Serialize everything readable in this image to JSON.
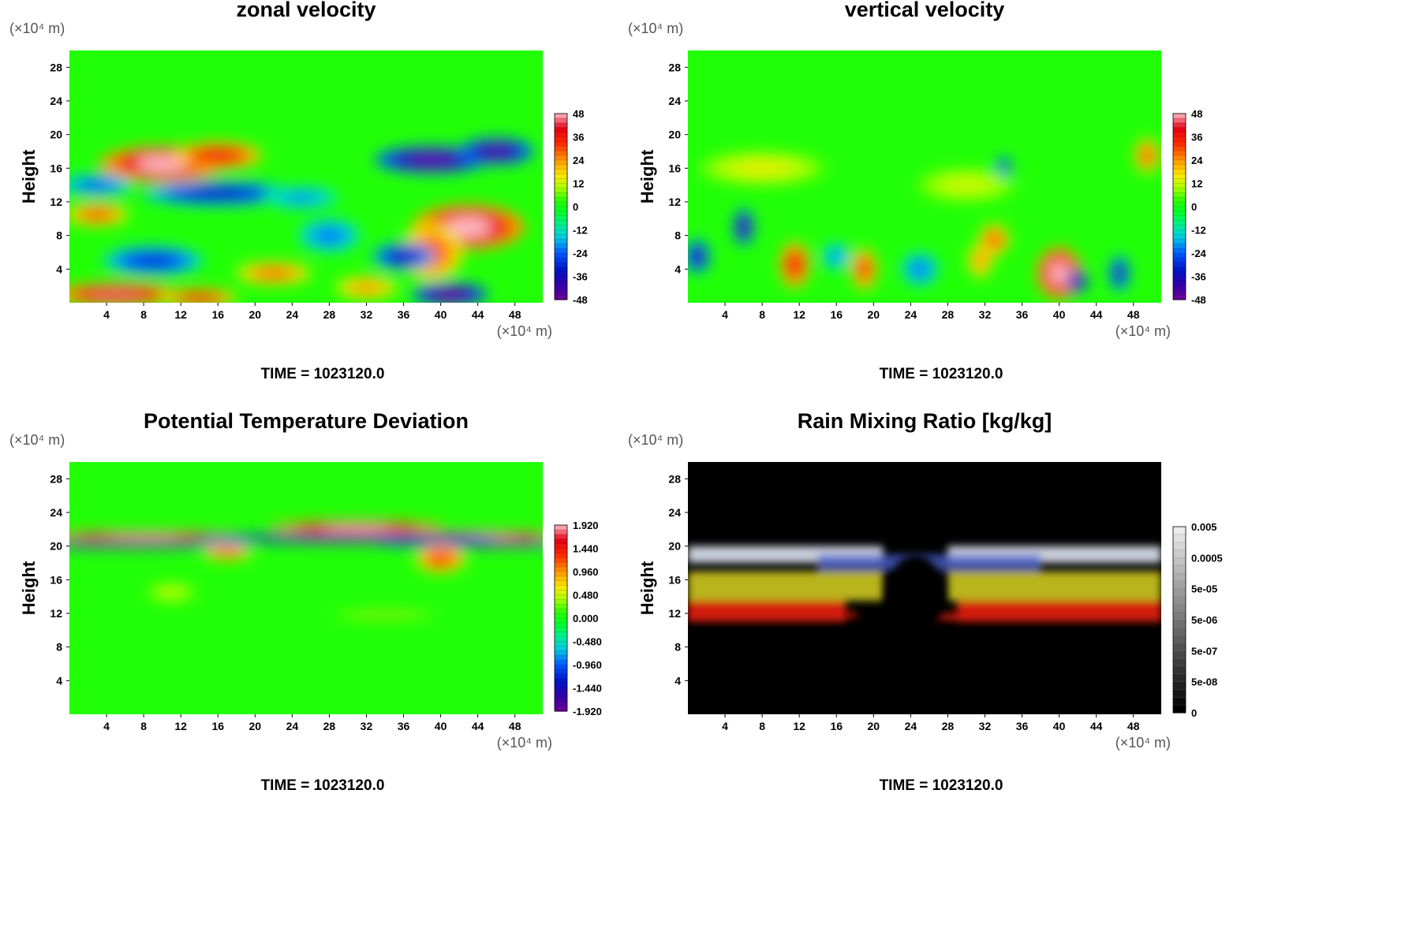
{
  "panels": [
    {
      "id": "zonal",
      "title": "zonal velocity",
      "ylabel": "Height",
      "y_unit_label": "(×10⁴ m)",
      "x_unit_label": "(×10⁴ m)",
      "time_label": "TIME = 1023120.0",
      "palette": "rainbow",
      "colorbar_labels": [
        "48",
        "36",
        "24",
        "12",
        "0",
        "-12",
        "-24",
        "-36",
        "-48"
      ]
    },
    {
      "id": "vertical",
      "title": "vertical velocity",
      "ylabel": "Height",
      "y_unit_label": "(×10⁴ m)",
      "x_unit_label": "(×10⁴ m)",
      "time_label": "TIME = 1023120.0",
      "palette": "rainbow",
      "colorbar_labels": [
        "48",
        "36",
        "24",
        "12",
        "0",
        "-12",
        "-24",
        "-36",
        "-48"
      ]
    },
    {
      "id": "theta",
      "title": "Potential Temperature Deviation",
      "ylabel": "Height",
      "y_unit_label": "(×10⁴ m)",
      "x_unit_label": "(×10⁴ m)",
      "time_label": "TIME = 1023120.0",
      "palette": "rainbow",
      "colorbar_labels": [
        "1.920",
        "1.440",
        "0.960",
        "0.480",
        "0.000",
        "-0.480",
        "-0.960",
        "-1.440",
        "-1.920"
      ]
    },
    {
      "id": "rain",
      "title": "Rain Mixing Ratio [kg/kg]",
      "ylabel": "Height",
      "y_unit_label": "(×10⁴ m)",
      "x_unit_label": "(×10⁴ m)",
      "time_label": "TIME = 1023120.0",
      "palette": "gray",
      "colorbar_labels": [
        "0.005",
        "0.0005",
        "5e-05",
        "5e-06",
        "5e-07",
        "5e-08",
        "0"
      ]
    }
  ],
  "chart_data": [
    {
      "type": "heatmap",
      "title": "zonal velocity",
      "ylabel": "Height",
      "x_ticks": [
        4,
        8,
        12,
        16,
        20,
        24,
        28,
        32,
        36,
        40,
        44,
        48
      ],
      "y_ticks": [
        4,
        8,
        12,
        16,
        20,
        24,
        28
      ],
      "xlim": [
        0,
        51
      ],
      "ylim": [
        0,
        30
      ],
      "x_unit": "×10⁴ m",
      "y_unit": "×10⁴ m",
      "color_levels": [
        48,
        36,
        24,
        12,
        0,
        -12,
        -24,
        -36,
        -48
      ],
      "features": [
        {
          "x": 10,
          "y": 16.5,
          "sx": 5,
          "sy": 1.6,
          "v": 48
        },
        {
          "x": 16,
          "y": 17.5,
          "sx": 3.5,
          "sy": 1.2,
          "v": 38
        },
        {
          "x": 3,
          "y": 10.5,
          "sx": 2.5,
          "sy": 1,
          "v": 30
        },
        {
          "x": 43,
          "y": 9,
          "sx": 4.5,
          "sy": 2,
          "v": 48
        },
        {
          "x": 39,
          "y": 6,
          "sx": 2.5,
          "sy": 2.5,
          "v": 30
        },
        {
          "x": 22,
          "y": 3.5,
          "sx": 3,
          "sy": 1,
          "v": 28
        },
        {
          "x": 5,
          "y": 1,
          "sx": 5,
          "sy": 1,
          "v": 44
        },
        {
          "x": 14,
          "y": 0.6,
          "sx": 3,
          "sy": 0.8,
          "v": 36
        },
        {
          "x": 32,
          "y": 1.8,
          "sx": 2.5,
          "sy": 1,
          "v": 24
        },
        {
          "x": 39,
          "y": 17,
          "sx": 4.5,
          "sy": 1.2,
          "v": -46
        },
        {
          "x": 46,
          "y": 18,
          "sx": 3,
          "sy": 1.2,
          "v": -44
        },
        {
          "x": 16,
          "y": 13,
          "sx": 6,
          "sy": 1.1,
          "v": -34
        },
        {
          "x": 9,
          "y": 5,
          "sx": 4,
          "sy": 1.3,
          "v": -30
        },
        {
          "x": 36,
          "y": 5.5,
          "sx": 2.5,
          "sy": 1.2,
          "v": -36
        },
        {
          "x": 41,
          "y": 1,
          "sx": 3,
          "sy": 1,
          "v": -48
        },
        {
          "x": 28,
          "y": 8,
          "sx": 2.5,
          "sy": 1.5,
          "v": -22
        },
        {
          "x": 3,
          "y": 14,
          "sx": 3,
          "sy": 1,
          "v": -24
        },
        {
          "x": 25,
          "y": 12.5,
          "sx": 3,
          "sy": 1,
          "v": -20
        }
      ]
    },
    {
      "type": "heatmap",
      "title": "vertical velocity",
      "ylabel": "Height",
      "x_ticks": [
        4,
        8,
        12,
        16,
        20,
        24,
        28,
        32,
        36,
        40,
        44,
        48
      ],
      "y_ticks": [
        4,
        8,
        12,
        16,
        20,
        24,
        28
      ],
      "xlim": [
        0,
        51
      ],
      "ylim": [
        0,
        30
      ],
      "x_unit": "×10⁴ m",
      "y_unit": "×10⁴ m",
      "color_levels": [
        48,
        36,
        24,
        12,
        0,
        -12,
        -24,
        -36,
        -48
      ],
      "features": [
        {
          "x": 40,
          "y": 3.5,
          "sx": 1.8,
          "sy": 2.3,
          "v": 48
        },
        {
          "x": 11.5,
          "y": 4.5,
          "sx": 1.2,
          "sy": 2,
          "v": 38
        },
        {
          "x": 19,
          "y": 4,
          "sx": 1,
          "sy": 1.8,
          "v": 34
        },
        {
          "x": 33,
          "y": 7.5,
          "sx": 1.2,
          "sy": 1.4,
          "v": 30
        },
        {
          "x": 31.5,
          "y": 5,
          "sx": 1,
          "sy": 1.5,
          "v": 24
        },
        {
          "x": 49.5,
          "y": 17.5,
          "sx": 1,
          "sy": 1.5,
          "v": 30
        },
        {
          "x": 6,
          "y": 9,
          "sx": 0.8,
          "sy": 1.6,
          "v": -42
        },
        {
          "x": 1,
          "y": 5.5,
          "sx": 1,
          "sy": 1.5,
          "v": -38
        },
        {
          "x": 42,
          "y": 2.5,
          "sx": 0.8,
          "sy": 1,
          "v": -44
        },
        {
          "x": 46.5,
          "y": 3.5,
          "sx": 0.8,
          "sy": 1.6,
          "v": -36
        },
        {
          "x": 34,
          "y": 15.5,
          "sx": 0.6,
          "sy": 1.5,
          "v": -38
        },
        {
          "x": 25,
          "y": 4,
          "sx": 1.5,
          "sy": 1.5,
          "v": -22
        },
        {
          "x": 16,
          "y": 5.5,
          "sx": 1.2,
          "sy": 1.2,
          "v": -20
        },
        {
          "x": 8,
          "y": 16,
          "sx": 5,
          "sy": 1.5,
          "v": 14
        },
        {
          "x": 30,
          "y": 14,
          "sx": 4,
          "sy": 1.5,
          "v": 12
        }
      ]
    },
    {
      "type": "heatmap",
      "title": "Potential Temperature Deviation",
      "ylabel": "Height",
      "x_ticks": [
        4,
        8,
        12,
        16,
        20,
        24,
        28,
        32,
        36,
        40,
        44,
        48
      ],
      "y_ticks": [
        4,
        8,
        12,
        16,
        20,
        24,
        28
      ],
      "xlim": [
        0,
        51
      ],
      "ylim": [
        0,
        30
      ],
      "x_unit": "×10⁴ m",
      "y_unit": "×10⁴ m",
      "color_levels": [
        1.92,
        1.44,
        0.96,
        0.48,
        0.0,
        -0.48,
        -0.96,
        -1.44,
        -1.92
      ],
      "features": [
        {
          "x": 31,
          "y": 22.2,
          "sx": 7,
          "sy": 0.6,
          "v": 1.92
        },
        {
          "x": 8,
          "y": 21.2,
          "sx": 8,
          "sy": 0.4,
          "v": 1.92
        },
        {
          "x": 45,
          "y": 21.2,
          "sx": 6,
          "sy": 0.4,
          "v": 1.92
        },
        {
          "x": 30,
          "y": 20.9,
          "sx": 12,
          "sy": 0.4,
          "v": -1.92
        },
        {
          "x": 6,
          "y": 20.2,
          "sx": 10,
          "sy": 0.3,
          "v": -1.92
        },
        {
          "x": 44,
          "y": 20.3,
          "sx": 8,
          "sy": 0.3,
          "v": -1.92
        },
        {
          "x": 17,
          "y": 19.3,
          "sx": 2,
          "sy": 0.7,
          "v": 1.2
        },
        {
          "x": 40,
          "y": 18.5,
          "sx": 2,
          "sy": 1.2,
          "v": 1.3
        },
        {
          "x": 11,
          "y": 14.5,
          "sx": 2,
          "sy": 0.8,
          "v": 0.48
        },
        {
          "x": 34,
          "y": 11.8,
          "sx": 4,
          "sy": 0.2,
          "v": 0.8
        }
      ]
    },
    {
      "type": "heatmap",
      "title": "Rain Mixing Ratio [kg/kg]",
      "ylabel": "Height",
      "x_ticks": [
        4,
        8,
        12,
        16,
        20,
        24,
        28,
        32,
        36,
        40,
        44,
        48
      ],
      "y_ticks": [
        4,
        8,
        12,
        16,
        20,
        24,
        28
      ],
      "xlim": [
        0,
        51
      ],
      "ylim": [
        0,
        30
      ],
      "x_unit": "×10⁴ m",
      "y_unit": "×10⁴ m",
      "color_levels": [
        "0.005",
        "0.0005",
        "5e-05",
        "5e-06",
        "5e-07",
        "5e-08",
        "0"
      ],
      "layers": [
        {
          "name": "white",
          "y_from": 18,
          "y_to": 20
        },
        {
          "name": "blue",
          "y_from": 17,
          "y_to": 19
        },
        {
          "name": "yellow",
          "y_from": 13.5,
          "y_to": 17
        },
        {
          "name": "red",
          "y_from": 11,
          "y_to": 13.5
        }
      ]
    }
  ]
}
